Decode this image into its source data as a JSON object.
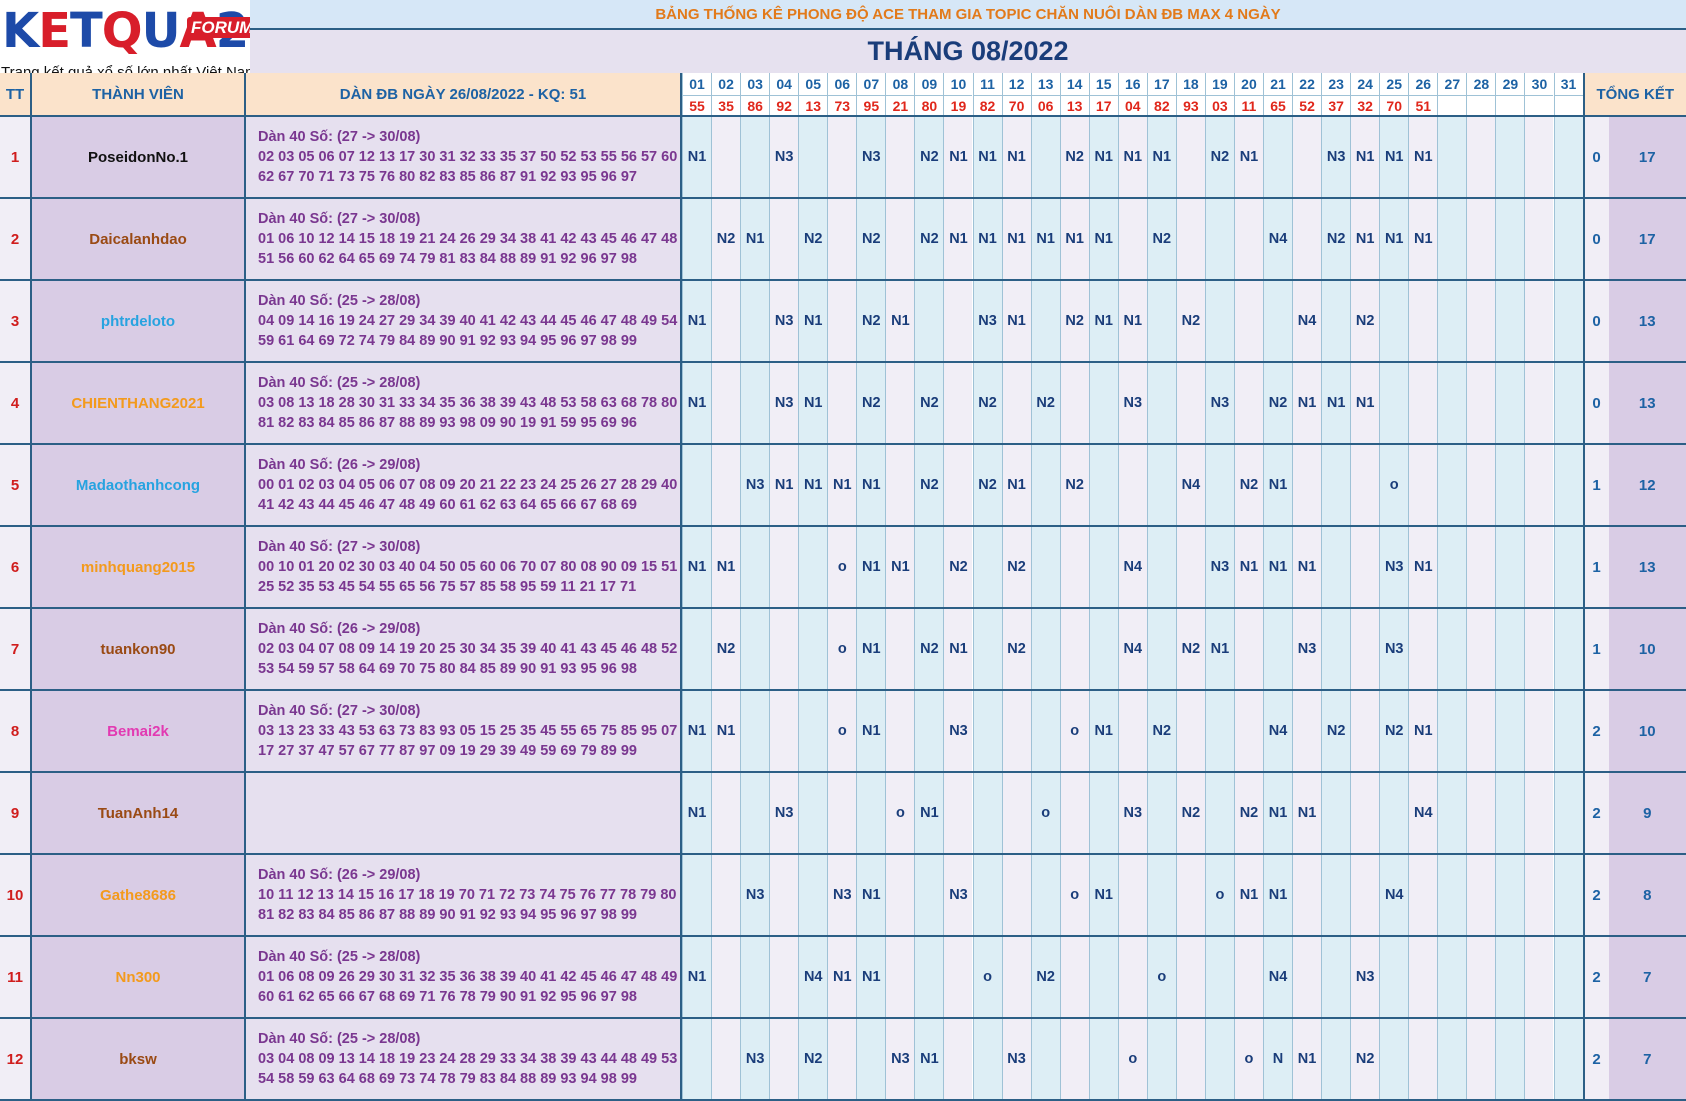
{
  "logo": {
    "letters": [
      "K",
      "E",
      "T",
      "Q",
      "U",
      "A",
      "2"
    ],
    "letter_colors": [
      "#1d4aa8",
      "#d81e2a",
      "#1d4aa8",
      "#d81e2a",
      "#1d4aa8",
      "#d81e2a",
      "#1d4aa8"
    ],
    "forum": "FORUM",
    "tagline": "Trang kết quả xổ số lớn nhất Việt Nam"
  },
  "banner": "BẢNG THỐNG KÊ PHONG ĐỘ ACE THAM GIA TOPIC CHĂN NUÔI DÀN ĐB MAX 4 NGÀY",
  "month_title": "THÁNG 08/2022",
  "headers": {
    "tt": "TT",
    "member": "THÀNH VIÊN",
    "dan": "DÀN ĐB NGÀY 26/08/2022 - KQ: 51",
    "summary": "TỔNG KẾT"
  },
  "days": [
    "01",
    "02",
    "03",
    "04",
    "05",
    "06",
    "07",
    "08",
    "09",
    "10",
    "11",
    "12",
    "13",
    "14",
    "15",
    "16",
    "17",
    "18",
    "19",
    "20",
    "21",
    "22",
    "23",
    "24",
    "25",
    "26",
    "27",
    "28",
    "29",
    "30",
    "31"
  ],
  "results": [
    "55",
    "35",
    "86",
    "92",
    "13",
    "73",
    "95",
    "21",
    "80",
    "19",
    "82",
    "70",
    "06",
    "13",
    "17",
    "04",
    "82",
    "93",
    "03",
    "11",
    "65",
    "52",
    "37",
    "32",
    "70",
    "51",
    "",
    "",
    "",
    "",
    ""
  ],
  "rows": [
    {
      "tt": "1",
      "name": "PoseidonNo.1",
      "color": "#111111",
      "dan_title": "Dàn 40 Số: (27 -> 30/08)",
      "dan_line1": "02 03 05 06 07 12 13 17 30 31 32 33 35 37 50 52 53 55 56 57 60",
      "dan_line2": "62 67 70 71 73 75 76 80 82 83 85 86 87 91 92 93 95 96 97",
      "cells": [
        "N1",
        "",
        "",
        "N3",
        "",
        "",
        "N3",
        "",
        "N2",
        "N1",
        "N1",
        "N1",
        "",
        "N2",
        "N1",
        "N1",
        "N1",
        "",
        "N2",
        "N1",
        "",
        "",
        "N3",
        "N1",
        "N1",
        "N1",
        "",
        "",
        "",
        "",
        ""
      ],
      "s1": "0",
      "s2": "17"
    },
    {
      "tt": "2",
      "name": "Daicalanhdao",
      "color": "#9a4a14",
      "dan_title": "Dàn 40 Số: (27 -> 30/08)",
      "dan_line1": "01 06 10 12 14 15 18 19 21 24 26 29 34 38 41 42 43 45 46 47 48",
      "dan_line2": "51 56 60 62 64 65 69 74 79 81 83 84 88 89 91 92 96 97 98",
      "cells": [
        "",
        "N2",
        "N1",
        "",
        "N2",
        "",
        "N2",
        "",
        "N2",
        "N1",
        "N1",
        "N1",
        "N1",
        "N1",
        "N1",
        "",
        "N2",
        "",
        "",
        "",
        "N4",
        "",
        "N2",
        "N1",
        "N1",
        "N1",
        "",
        "",
        "",
        "",
        ""
      ],
      "s1": "0",
      "s2": "17"
    },
    {
      "tt": "3",
      "name": "phtrdeloto",
      "color": "#27a3e0",
      "dan_title": "Dàn 40 Số: (25 -> 28/08)",
      "dan_line1": "04 09 14 16 19 24 27 29 34 39 40 41 42 43 44 45 46 47 48 49 54",
      "dan_line2": "59 61 64 69 72 74 79 84 89 90 91 92 93 94 95 96 97 98 99",
      "cells": [
        "N1",
        "",
        "",
        "N3",
        "N1",
        "",
        "N2",
        "N1",
        "",
        "",
        "N3",
        "N1",
        "",
        "N2",
        "N1",
        "N1",
        "",
        "N2",
        "",
        "",
        "",
        "N4",
        "",
        "N2",
        "",
        "",
        "",
        "",
        "",
        "",
        ""
      ],
      "s1": "0",
      "s2": "13"
    },
    {
      "tt": "4",
      "name": "CHIENTHANG2021",
      "color": "#f39a1c",
      "dan_title": "Dàn 40 Số: (25 -> 28/08)",
      "dan_line1": "03 08 13 18 28 30 31 33 34 35 36 38 39 43 48 53 58 63 68 78 80",
      "dan_line2": "81 82 83 84 85 86 87 88 89 93 98 09 90 19 91 59 95 69 96",
      "cells": [
        "N1",
        "",
        "",
        "N3",
        "N1",
        "",
        "N2",
        "",
        "N2",
        "",
        "N2",
        "",
        "N2",
        "",
        "",
        "N3",
        "",
        "",
        "N3",
        "",
        "N2",
        "N1",
        "N1",
        "N1",
        "",
        "",
        "",
        "",
        "",
        "",
        ""
      ],
      "s1": "0",
      "s2": "13"
    },
    {
      "tt": "5",
      "name": "Madaothanhcong",
      "color": "#27a3e0",
      "dan_title": "Dàn 40 Số: (26 -> 29/08)",
      "dan_line1": "00 01 02 03 04 05 06 07 08 09 20 21 22 23 24 25 26 27 28 29 40",
      "dan_line2": "41 42 43 44 45 46 47 48 49 60 61 62 63 64 65 66 67 68 69",
      "cells": [
        "",
        "",
        "N3",
        "N1",
        "N1",
        "N1",
        "N1",
        "",
        "N2",
        "",
        "N2",
        "N1",
        "",
        "N2",
        "",
        "",
        "",
        "N4",
        "",
        "N2",
        "N1",
        "",
        "",
        "",
        "o",
        "",
        "",
        "",
        "",
        "",
        ""
      ],
      "s1": "1",
      "s2": "12"
    },
    {
      "tt": "6",
      "name": "minhquang2015",
      "color": "#f39a1c",
      "dan_title": "Dàn 40 Số: (27 -> 30/08)",
      "dan_line1": "00 10 01 20 02 30 03 40 04 50 05 60 06 70 07 80 08 90 09 15 51",
      "dan_line2": "25 52 35 53 45 54 55 65 56 75 57 85 58 95 59 11 21 17 71",
      "cells": [
        "N1",
        "N1",
        "",
        "",
        "",
        "o",
        "N1",
        "N1",
        "",
        "N2",
        "",
        "N2",
        "",
        "",
        "",
        "N4",
        "",
        "",
        "N3",
        "N1",
        "N1",
        "N1",
        "",
        "",
        "N3",
        "N1",
        "",
        "",
        "",
        "",
        ""
      ],
      "s1": "1",
      "s2": "13"
    },
    {
      "tt": "7",
      "name": "tuankon90",
      "color": "#9a4a14",
      "dan_title": "Dàn 40 Số: (26 -> 29/08)",
      "dan_line1": "02 03 04 07 08 09 14 19 20 25 30 34 35 39 40 41 43 45 46 48 52",
      "dan_line2": "53 54 59 57 58 64 69 70 75 80 84 85 89 90 91 93 95 96 98",
      "cells": [
        "",
        "N2",
        "",
        "",
        "",
        "o",
        "N1",
        "",
        "N2",
        "N1",
        "",
        "N2",
        "",
        "",
        "",
        "N4",
        "",
        "N2",
        "N1",
        "",
        "",
        "N3",
        "",
        "",
        "N3",
        "",
        "",
        "",
        "",
        "",
        ""
      ],
      "s1": "1",
      "s2": "10"
    },
    {
      "tt": "8",
      "name": "Bemai2k",
      "color": "#e23ab2",
      "dan_title": "Dàn 40 Số: (27 -> 30/08)",
      "dan_line1": "03 13 23 33 43 53 63 73 83 93 05 15 25 35 45 55 65 75 85 95 07",
      "dan_line2": "17 27 37 47 57 67 77 87 97 09 19 29 39 49 59 69 79 89 99",
      "cells": [
        "N1",
        "N1",
        "",
        "",
        "",
        "o",
        "N1",
        "",
        "",
        "N3",
        "",
        "",
        "",
        "o",
        "N1",
        "",
        "N2",
        "",
        "",
        "",
        "N4",
        "",
        "N2",
        "",
        "N2",
        "N1",
        "",
        "",
        "",
        "",
        ""
      ],
      "s1": "2",
      "s2": "10"
    },
    {
      "tt": "9",
      "name": "TuanAnh14",
      "color": "#9a4a14",
      "dan_title": "",
      "dan_line1": "",
      "dan_line2": "",
      "cells": [
        "N1",
        "",
        "",
        "N3",
        "",
        "",
        "",
        "o",
        "N1",
        "",
        "",
        "",
        "o",
        "",
        "",
        "N3",
        "",
        "N2",
        "",
        "N2",
        "N1",
        "N1",
        "",
        "",
        "",
        "N4",
        "",
        "",
        "",
        "",
        ""
      ],
      "s1": "2",
      "s2": "9"
    },
    {
      "tt": "10",
      "name": "Gathe8686",
      "color": "#f39a1c",
      "dan_title": "Dàn 40 Số: (26 -> 29/08)",
      "dan_line1": "10 11 12 13 14 15 16 17 18 19 70 71 72 73 74 75 76 77 78 79 80",
      "dan_line2": "81 82 83 84 85 86 87 88 89 90 91 92 93 94 95 96 97 98 99",
      "cells": [
        "",
        "",
        "N3",
        "",
        "",
        "N3",
        "N1",
        "",
        "",
        "N3",
        "",
        "",
        "",
        "o",
        "N1",
        "",
        "",
        "",
        "o",
        "N1",
        "N1",
        "",
        "",
        "",
        "N4",
        "",
        "",
        "",
        "",
        "",
        ""
      ],
      "s1": "2",
      "s2": "8"
    },
    {
      "tt": "11",
      "name": "Nn300",
      "color": "#f39a1c",
      "dan_title": "Dàn 40 Số: (25 -> 28/08)",
      "dan_line1": "01 06 08 09 26 29 30 31 32 35 36 38 39 40 41 42 45 46 47 48 49",
      "dan_line2": "60 61 62 65 66 67 68 69 71 76 78 79 90 91 92 95 96 97 98",
      "cells": [
        "N1",
        "",
        "",
        "",
        "N4",
        "N1",
        "N1",
        "",
        "",
        "",
        "o",
        "",
        "N2",
        "",
        "",
        "",
        "o",
        "",
        "",
        "",
        "N4",
        "",
        "",
        "N3",
        "",
        "",
        "",
        "",
        "",
        "",
        ""
      ],
      "s1": "2",
      "s2": "7"
    },
    {
      "tt": "12",
      "name": "bksw",
      "color": "#9a4a14",
      "dan_title": "Dàn 40 Số: (25 -> 28/08)",
      "dan_line1": "03 04 08 09 13 14 18 19 23 24 28 29 33 34 38 39 43 44 48 49 53",
      "dan_line2": "54 58 59 63 64 68 69 73 74 78 79 83 84 88 89 93 94 98 99",
      "cells": [
        "",
        "",
        "N3",
        "",
        "N2",
        "",
        "",
        "N3",
        "N1",
        "",
        "",
        "N3",
        "",
        "",
        "",
        "o",
        "",
        "",
        "",
        "o",
        "N",
        "N1",
        "",
        "N2",
        "",
        "",
        "",
        "",
        "",
        "",
        ""
      ],
      "s1": "2",
      "s2": "7"
    }
  ]
}
